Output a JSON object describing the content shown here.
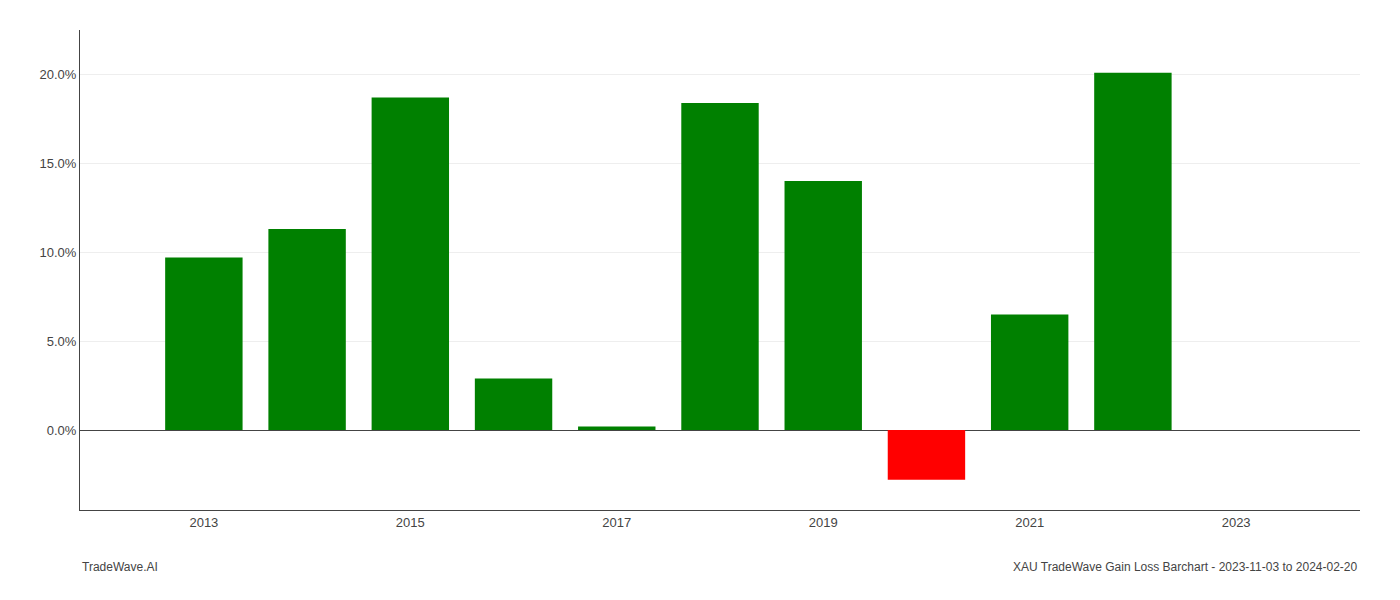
{
  "chart_data": {
    "type": "bar",
    "x": [
      2013,
      2014,
      2015,
      2016,
      2017,
      2018,
      2019,
      2020,
      2021,
      2022
    ],
    "values": [
      9.7,
      11.3,
      18.7,
      2.9,
      0.2,
      18.4,
      14.0,
      -2.8,
      6.5,
      20.1
    ],
    "colors": [
      "#008000",
      "#008000",
      "#008000",
      "#008000",
      "#008000",
      "#008000",
      "#008000",
      "#ff0000",
      "#008000",
      "#008000"
    ],
    "xlim": [
      2011.8,
      2024.2
    ],
    "xticks": [
      2013,
      2015,
      2017,
      2019,
      2021,
      2023
    ],
    "ylim": [
      -4.5,
      22.5
    ],
    "yticks": [
      {
        "value": 0.0,
        "label": "0.0%"
      },
      {
        "value": 5.0,
        "label": "5.0%"
      },
      {
        "value": 10.0,
        "label": "10.0%"
      },
      {
        "value": 15.0,
        "label": "15.0%"
      },
      {
        "value": 20.0,
        "label": "20.0%"
      }
    ],
    "grid": true,
    "annotations": [
      "TradeWave.AI",
      "XAU TradeWave Gain Loss Barchart - 2023-11-03 to 2024-02-20"
    ]
  }
}
